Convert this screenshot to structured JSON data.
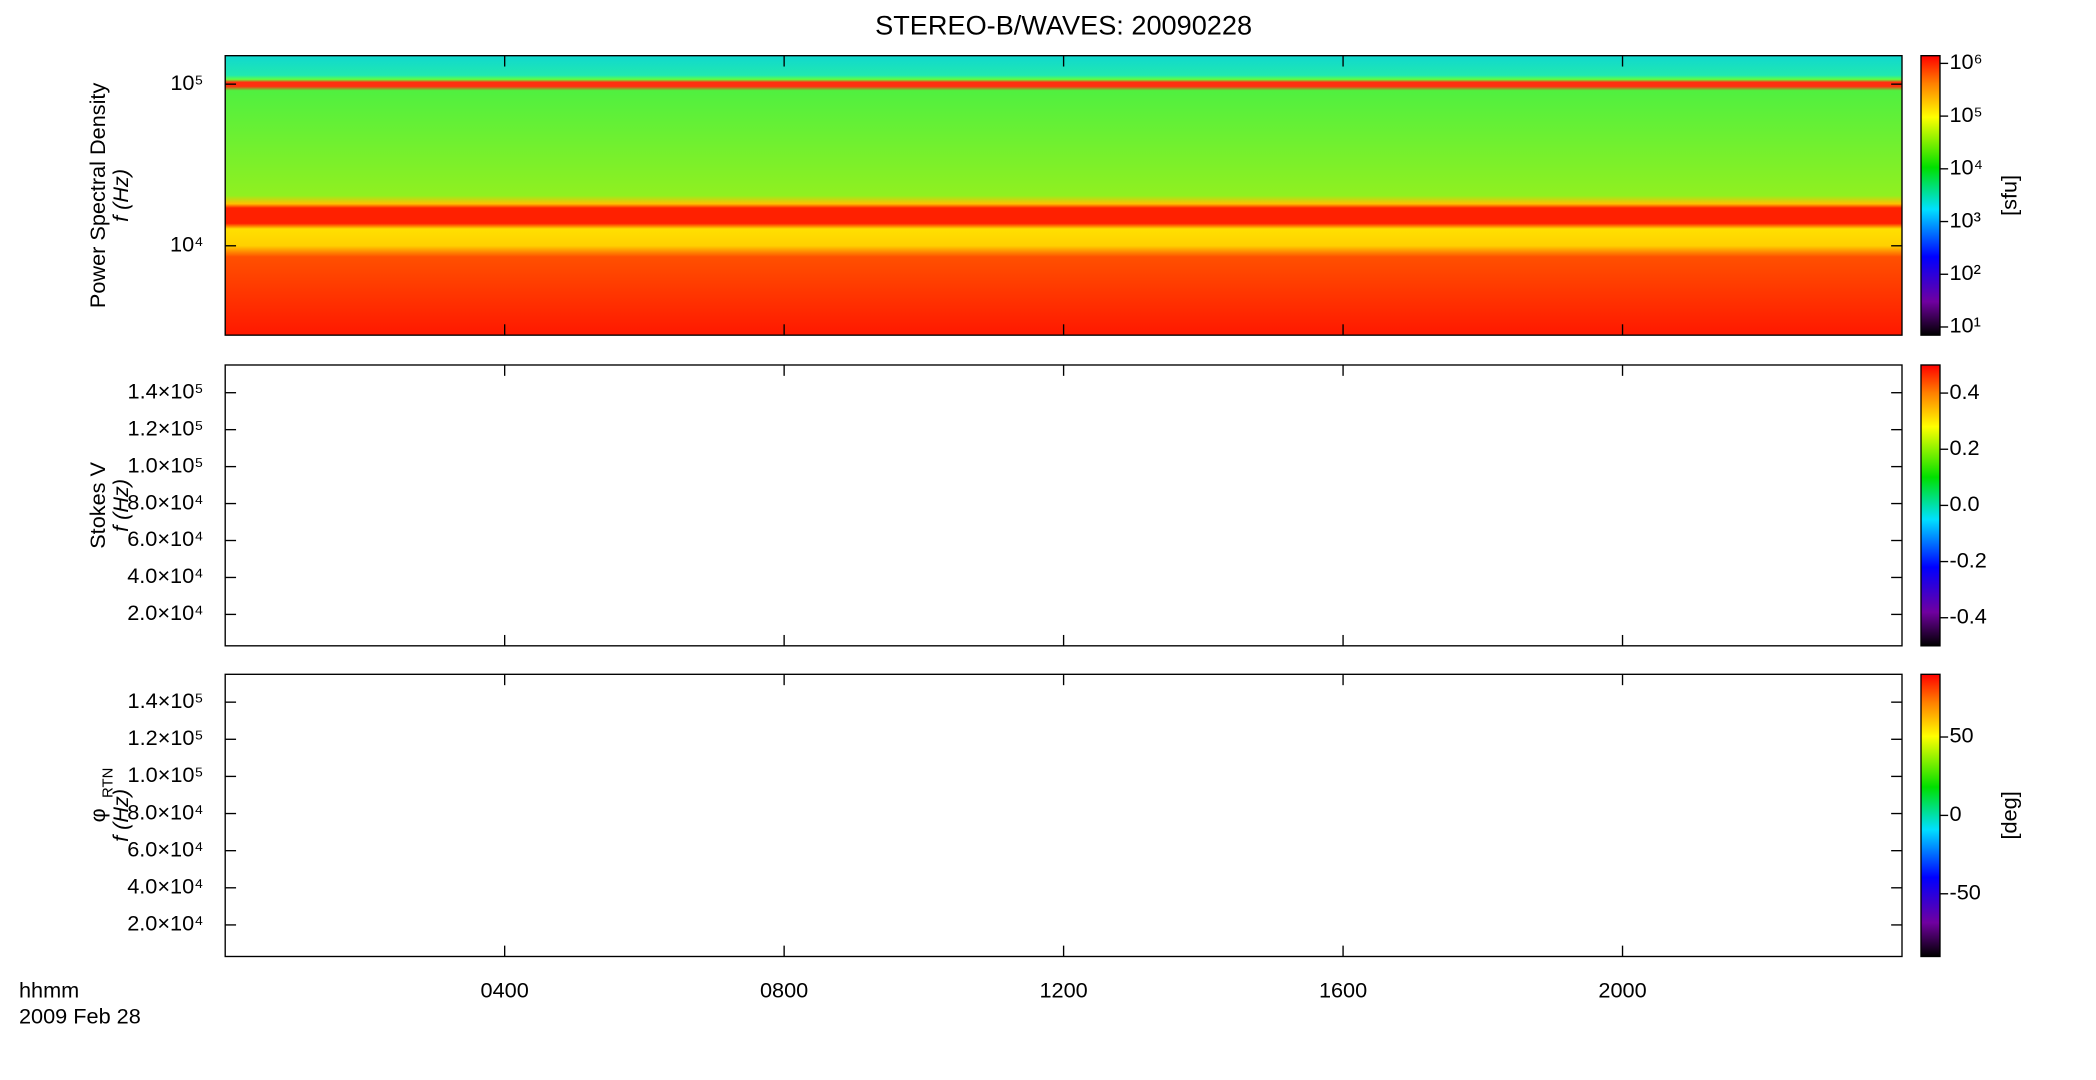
{
  "title": "STEREO-B/WAVES: 20090228",
  "x_axis": {
    "label": "hhmm",
    "date": "2009 Feb 28",
    "xlim": [
      0,
      24
    ],
    "xticks": [
      {
        "value": 4,
        "label": "0400"
      },
      {
        "value": 8,
        "label": "0800"
      },
      {
        "value": 12,
        "label": "1200"
      },
      {
        "value": 16,
        "label": "1600"
      },
      {
        "value": 20,
        "label": "2000"
      }
    ]
  },
  "chart_data": [
    {
      "type": "heatmap",
      "ylabel": [
        "Power Spectral Density",
        "f (Hz)"
      ],
      "yscale": "log",
      "ylim": [
        2800,
        150000
      ],
      "yticks": [
        {
          "value": 10000,
          "label": "10⁴"
        },
        {
          "value": 100000,
          "label": "10⁵"
        }
      ],
      "colorbar": {
        "scale": "log",
        "lim": [
          7,
          1400000
        ],
        "label": "[sfu]",
        "ticks": [
          {
            "value": 10,
            "label": "10¹"
          },
          {
            "value": 100,
            "label": "10²"
          },
          {
            "value": 1000,
            "label": "10³"
          },
          {
            "value": 10000,
            "label": "10⁴"
          },
          {
            "value": 100000,
            "label": "10⁵"
          },
          {
            "value": 1000000,
            "label": "10⁶"
          }
        ]
      }
    },
    {
      "type": "heatmap",
      "ylabel": [
        "Stokes V",
        "f (Hz)"
      ],
      "yscale": "linear",
      "ylim": [
        3000,
        155000
      ],
      "yticks": [
        {
          "value": 20000,
          "label": "2.0×10⁴"
        },
        {
          "value": 40000,
          "label": "4.0×10⁴"
        },
        {
          "value": 60000,
          "label": "6.0×10⁴"
        },
        {
          "value": 80000,
          "label": "8.0×10⁴"
        },
        {
          "value": 100000,
          "label": "1.0×10⁵"
        },
        {
          "value": 120000,
          "label": "1.2×10⁵"
        },
        {
          "value": 140000,
          "label": "1.4×10⁵"
        }
      ],
      "colorbar": {
        "scale": "linear",
        "lim": [
          -0.5,
          0.5
        ],
        "ticks": [
          {
            "value": -0.4,
            "label": "-0.4"
          },
          {
            "value": -0.2,
            "label": "-0.2"
          },
          {
            "value": 0,
            "label": "0.0"
          },
          {
            "value": 0.2,
            "label": "0.2"
          },
          {
            "value": 0.4,
            "label": "0.4"
          }
        ]
      }
    },
    {
      "type": "heatmap",
      "ylabel": [
        "φ",
        "f (Hz)"
      ],
      "ylabel_sub": "RTN",
      "yscale": "linear",
      "ylim": [
        3000,
        155000
      ],
      "yticks": [
        {
          "value": 20000,
          "label": "2.0×10⁴"
        },
        {
          "value": 40000,
          "label": "4.0×10⁴"
        },
        {
          "value": 60000,
          "label": "6.0×10⁴"
        },
        {
          "value": 80000,
          "label": "8.0×10⁴"
        },
        {
          "value": 100000,
          "label": "1.0×10⁵"
        },
        {
          "value": 120000,
          "label": "1.2×10⁵"
        },
        {
          "value": 140000,
          "label": "1.4×10⁵"
        }
      ],
      "colorbar": {
        "scale": "linear",
        "lim": [
          -90,
          90
        ],
        "label": "[deg]",
        "ticks": [
          -50,
          0,
          50
        ]
      }
    }
  ]
}
